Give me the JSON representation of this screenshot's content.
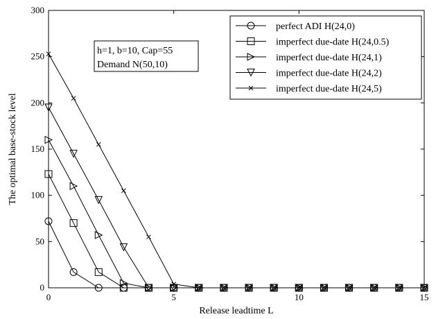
{
  "chart_data": {
    "type": "line",
    "xlabel": "Release leadtime L",
    "ylabel": "The optimal base-stock level",
    "xlim": [
      0,
      15
    ],
    "ylim": [
      0,
      300
    ],
    "xticks": [
      0,
      5,
      10,
      15
    ],
    "yticks": [
      0,
      50,
      100,
      150,
      200,
      250,
      300
    ],
    "grid": false,
    "legend_position": "top-right",
    "annotation": [
      "h=1, b=10, Cap=55",
      "Demand N(50,10)"
    ],
    "series": [
      {
        "name": "perfect ADI H(24,0)",
        "marker": "circle",
        "x": [
          0,
          1,
          2,
          3,
          4,
          5,
          6,
          7,
          8,
          9,
          10,
          11,
          12,
          13,
          14,
          15
        ],
        "values": [
          72,
          17,
          0,
          0,
          0,
          0,
          0,
          0,
          0,
          0,
          0,
          0,
          0,
          0,
          0,
          0
        ]
      },
      {
        "name": "imperfect due-date H(24,0.5)",
        "marker": "square",
        "x": [
          0,
          1,
          2,
          3,
          4,
          5,
          6,
          7,
          8,
          9,
          10,
          11,
          12,
          13,
          14,
          15
        ],
        "values": [
          123,
          70,
          17,
          0,
          0,
          0,
          0,
          0,
          0,
          0,
          0,
          0,
          0,
          0,
          0,
          0
        ]
      },
      {
        "name": "imperfect due-date H(24,1)",
        "marker": "triangle-right",
        "x": [
          0,
          1,
          2,
          3,
          4,
          5,
          6,
          7,
          8,
          9,
          10,
          11,
          12,
          13,
          14,
          15
        ],
        "values": [
          160,
          110,
          57,
          5,
          0,
          0,
          0,
          0,
          0,
          0,
          0,
          0,
          0,
          0,
          0,
          0
        ]
      },
      {
        "name": "imperfect due-date H(24,2)",
        "marker": "triangle-down",
        "x": [
          0,
          1,
          2,
          3,
          4,
          5,
          6,
          7,
          8,
          9,
          10,
          11,
          12,
          13,
          14,
          15
        ],
        "values": [
          195,
          145,
          95,
          44,
          0,
          0,
          0,
          0,
          0,
          0,
          0,
          0,
          0,
          0,
          0,
          0
        ]
      },
      {
        "name": "imperfect due-date H(24,5)",
        "marker": "x",
        "x": [
          0,
          1,
          2,
          3,
          4,
          5,
          6,
          7,
          8,
          9,
          10,
          11,
          12,
          13,
          14,
          15
        ],
        "values": [
          253,
          205,
          155,
          105,
          55,
          4,
          0,
          0,
          0,
          0,
          0,
          0,
          0,
          0,
          0,
          0
        ]
      }
    ]
  }
}
